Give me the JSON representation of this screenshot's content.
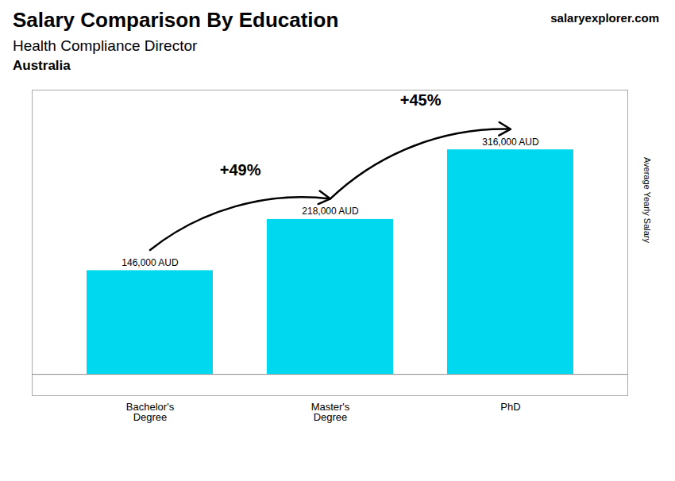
{
  "chart_data": {
    "type": "bar",
    "title": "Salary Comparison By Education",
    "subtitle": [
      "Health Compliance Director",
      "Australia"
    ],
    "brand": [
      "salary",
      "explorer",
      ".com"
    ],
    "ylabel": "Average Yearly Salary",
    "categories": [
      "Bachelor's\nDegree",
      "Master's\nDegree",
      "PhD"
    ],
    "values": [
      146000,
      218000,
      316000
    ],
    "value_labels": [
      "146,000 AUD",
      "218,000 AUD",
      "316,000 AUD"
    ],
    "data_labels": true,
    "annotations": [
      {
        "text": "+49%",
        "from": "Bachelor's\nDegree",
        "to": "Master's\nDegree"
      },
      {
        "text": "+45%",
        "from": "Master's\nDegree",
        "to": "PhD"
      }
    ],
    "color": "#00d8f0",
    "ylim": [
      -30000,
      400000
    ],
    "tick_labels": "x",
    "grid": false
  }
}
